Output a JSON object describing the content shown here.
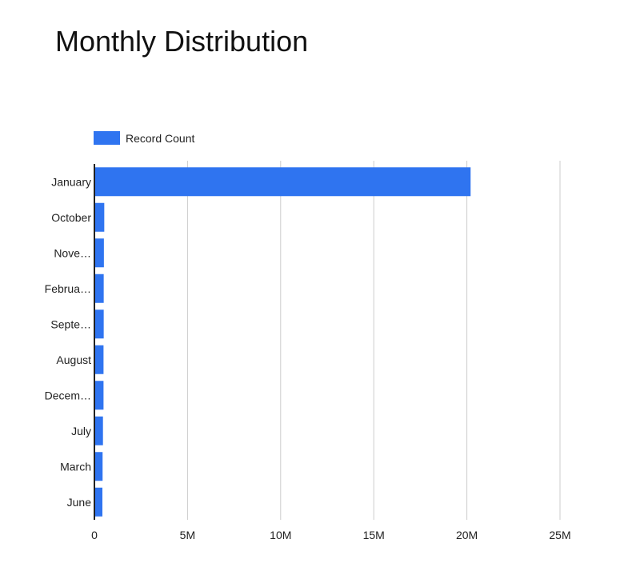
{
  "chart_data": {
    "type": "bar",
    "orientation": "horizontal",
    "title": "Monthly Distribution",
    "legend": {
      "position": "top-left",
      "entries": [
        "Record Count"
      ]
    },
    "categories": [
      "January",
      "October",
      "Nove…",
      "Februa…",
      "Septe…",
      "August",
      "Decem…",
      "July",
      "March",
      "June"
    ],
    "series": [
      {
        "name": "Record Count",
        "color": "#2F74F0",
        "values": [
          20200000,
          530000,
          510000,
          500000,
          500000,
          490000,
          490000,
          460000,
          440000,
          430000
        ]
      }
    ],
    "x_ticks": [
      "0",
      "5M",
      "10M",
      "15M",
      "20M",
      "25M"
    ],
    "xlim": [
      0,
      25000000
    ],
    "grid": true
  }
}
